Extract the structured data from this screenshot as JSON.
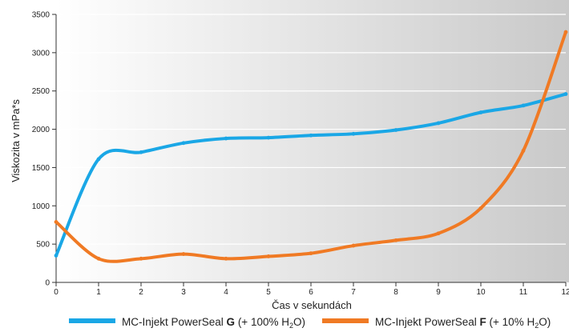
{
  "chart_data": {
    "type": "line",
    "title": "",
    "xlabel": "Čas v sekundách",
    "ylabel": "Viskozita v mPa*s",
    "x": [
      0,
      1,
      2,
      3,
      4,
      5,
      6,
      7,
      8,
      9,
      10,
      11,
      12
    ],
    "xlim": [
      0,
      12
    ],
    "ylim": [
      0,
      3500
    ],
    "y_ticks": [
      0,
      500,
      1000,
      1500,
      2000,
      2500,
      3000,
      3500
    ],
    "x_ticks": [
      "0",
      "1",
      "2",
      "3",
      "4",
      "5",
      "6",
      "7",
      "8",
      "9",
      "10",
      "11",
      "12"
    ],
    "grid": true,
    "legend_position": "bottom",
    "series": [
      {
        "color": "#1aa7e6",
        "legend": {
          "prefix": "MC-Injekt PowerSeal ",
          "bold": "G",
          "suffix_pre": " (+ 100% H",
          "sub": "2",
          "suffix_post": "O)"
        },
        "values": [
          350,
          1610,
          1700,
          1820,
          1880,
          1890,
          1920,
          1940,
          1990,
          2080,
          2220,
          2310,
          2460
        ]
      },
      {
        "color": "#f07a24",
        "legend": {
          "prefix": "MC-Injekt PowerSeal ",
          "bold": "F",
          "suffix_pre": " (+ 10% H",
          "sub": "2",
          "suffix_post": "O)"
        },
        "values": [
          790,
          310,
          310,
          370,
          310,
          340,
          380,
          480,
          550,
          640,
          970,
          1720,
          3270
        ]
      }
    ]
  }
}
